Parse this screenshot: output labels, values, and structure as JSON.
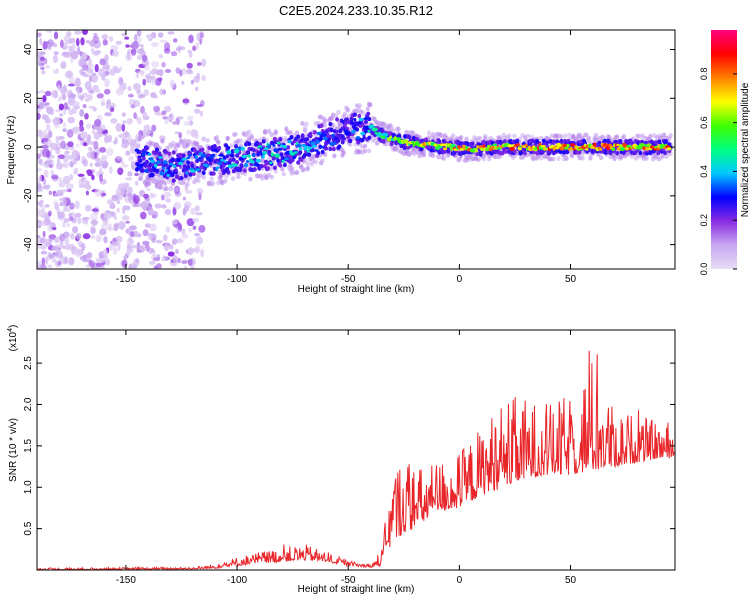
{
  "title": "C2E5.2024.233.10.35.R12",
  "chart_data": [
    {
      "type": "heatmap",
      "name": "spectrogram",
      "xlabel": "Height of straight line (km)",
      "ylabel": "Frequency (Hz)",
      "xlim": [
        -190,
        97
      ],
      "ylim": [
        -50,
        48
      ],
      "xticks": [
        -150,
        -100,
        -50,
        0,
        50
      ],
      "yticks": [
        -40,
        -20,
        0,
        20,
        40
      ],
      "colorbar": {
        "label": "Normalized spectral amplitude",
        "range": [
          0,
          0.98
        ],
        "ticks": [
          "0.0",
          "0.2",
          "0.4",
          "0.6",
          "0.8"
        ],
        "stops": [
          "#e8dcf5",
          "#c8a8f0",
          "#8a2be2",
          "#0000ff",
          "#00c8ff",
          "#00ff80",
          "#40ff00",
          "#ffff00",
          "#ff8000",
          "#ff0000",
          "#ff0080"
        ]
      },
      "ridge": {
        "x": [
          -145,
          -130,
          -115,
          -100,
          -85,
          -70,
          -60,
          -50,
          -40,
          -35,
          -25,
          -15,
          -5,
          5,
          15,
          30,
          50,
          70,
          90,
          95
        ],
        "y": [
          -5,
          -8,
          -6,
          -4,
          -3,
          0,
          4,
          7,
          8,
          5,
          2,
          1,
          0,
          -1,
          0,
          0,
          0,
          0,
          0,
          0
        ],
        "amplitude": [
          0.4,
          0.45,
          0.4,
          0.45,
          0.5,
          0.45,
          0.35,
          0.35,
          0.45,
          0.6,
          0.75,
          0.8,
          0.85,
          0.85,
          0.88,
          0.88,
          0.9,
          0.9,
          0.92,
          0.92
        ]
      },
      "noise_region_x": [
        -190,
        -115
      ]
    },
    {
      "type": "line",
      "name": "snr",
      "xlabel": "Height of straight line (km)",
      "ylabel": "SNR (10 * v/v)",
      "exponent_label": "(x10",
      "exponent_power": "4",
      "exponent_close": ")",
      "xlim": [
        -190,
        97
      ],
      "ylim": [
        0,
        2.9
      ],
      "xticks": [
        -150,
        -100,
        -50,
        0,
        50
      ],
      "yticks": [
        "0.5",
        "1.0",
        "1.5",
        "2.0",
        "2.5"
      ],
      "color": "#e8262a",
      "envelope": {
        "x": [
          -190,
          -120,
          -110,
          -100,
          -90,
          -80,
          -70,
          -60,
          -50,
          -40,
          -35,
          -30,
          -25,
          -20,
          -10,
          0,
          10,
          20,
          30,
          40,
          50,
          60,
          70,
          80,
          90,
          97
        ],
        "low": [
          0.0,
          0.01,
          0.02,
          0.05,
          0.08,
          0.1,
          0.12,
          0.1,
          0.05,
          0.03,
          0.05,
          0.35,
          0.45,
          0.5,
          0.7,
          0.75,
          0.9,
          1.0,
          1.1,
          1.15,
          1.15,
          1.2,
          1.25,
          1.3,
          1.35,
          1.35
        ],
        "high": [
          0.03,
          0.04,
          0.08,
          0.18,
          0.25,
          0.3,
          0.35,
          0.25,
          0.12,
          0.08,
          0.3,
          1.4,
          1.6,
          1.35,
          1.45,
          1.55,
          1.9,
          2.3,
          2.25,
          2.15,
          2.3,
          2.85,
          2.05,
          2.0,
          1.85,
          1.75
        ]
      }
    }
  ]
}
